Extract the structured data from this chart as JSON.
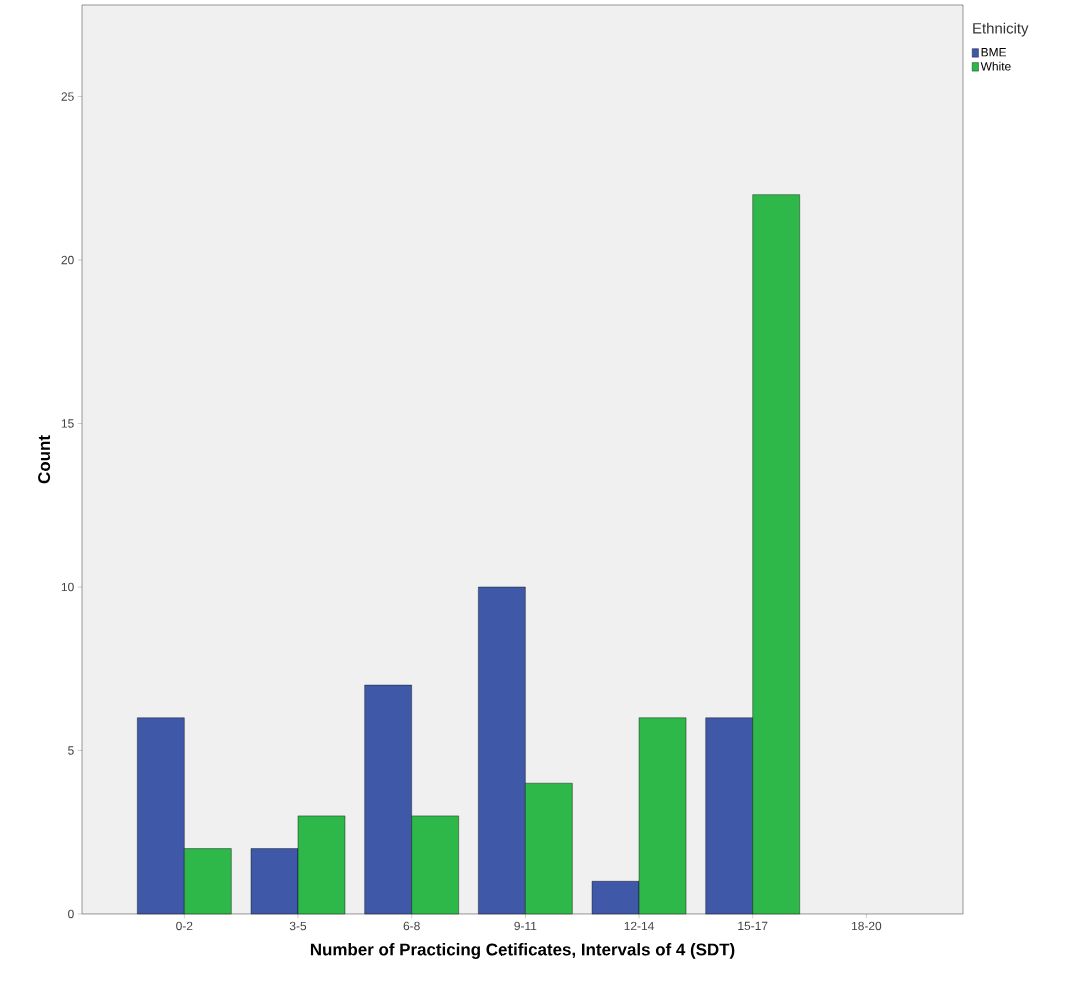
{
  "chart_data": {
    "type": "bar",
    "xlabel": "Number of Practicing Cetificates, Intervals of 4 (SDT)",
    "ylabel": "Count",
    "legend_title": "Ethnicity",
    "categories": [
      "0-2",
      "3-5",
      "6-8",
      "9-11",
      "12-14",
      "15-17",
      "18-20"
    ],
    "series": [
      {
        "name": "BME",
        "color": "#3f58a8",
        "values": [
          6,
          2,
          7,
          10,
          1,
          6,
          null
        ]
      },
      {
        "name": "White",
        "color": "#2eb84a",
        "values": [
          2,
          3,
          3,
          4,
          6,
          22,
          null
        ]
      }
    ],
    "ylim": [
      0,
      27.8
    ],
    "yticks": [
      0,
      5,
      10,
      15,
      20,
      25
    ],
    "legend": "top right"
  }
}
